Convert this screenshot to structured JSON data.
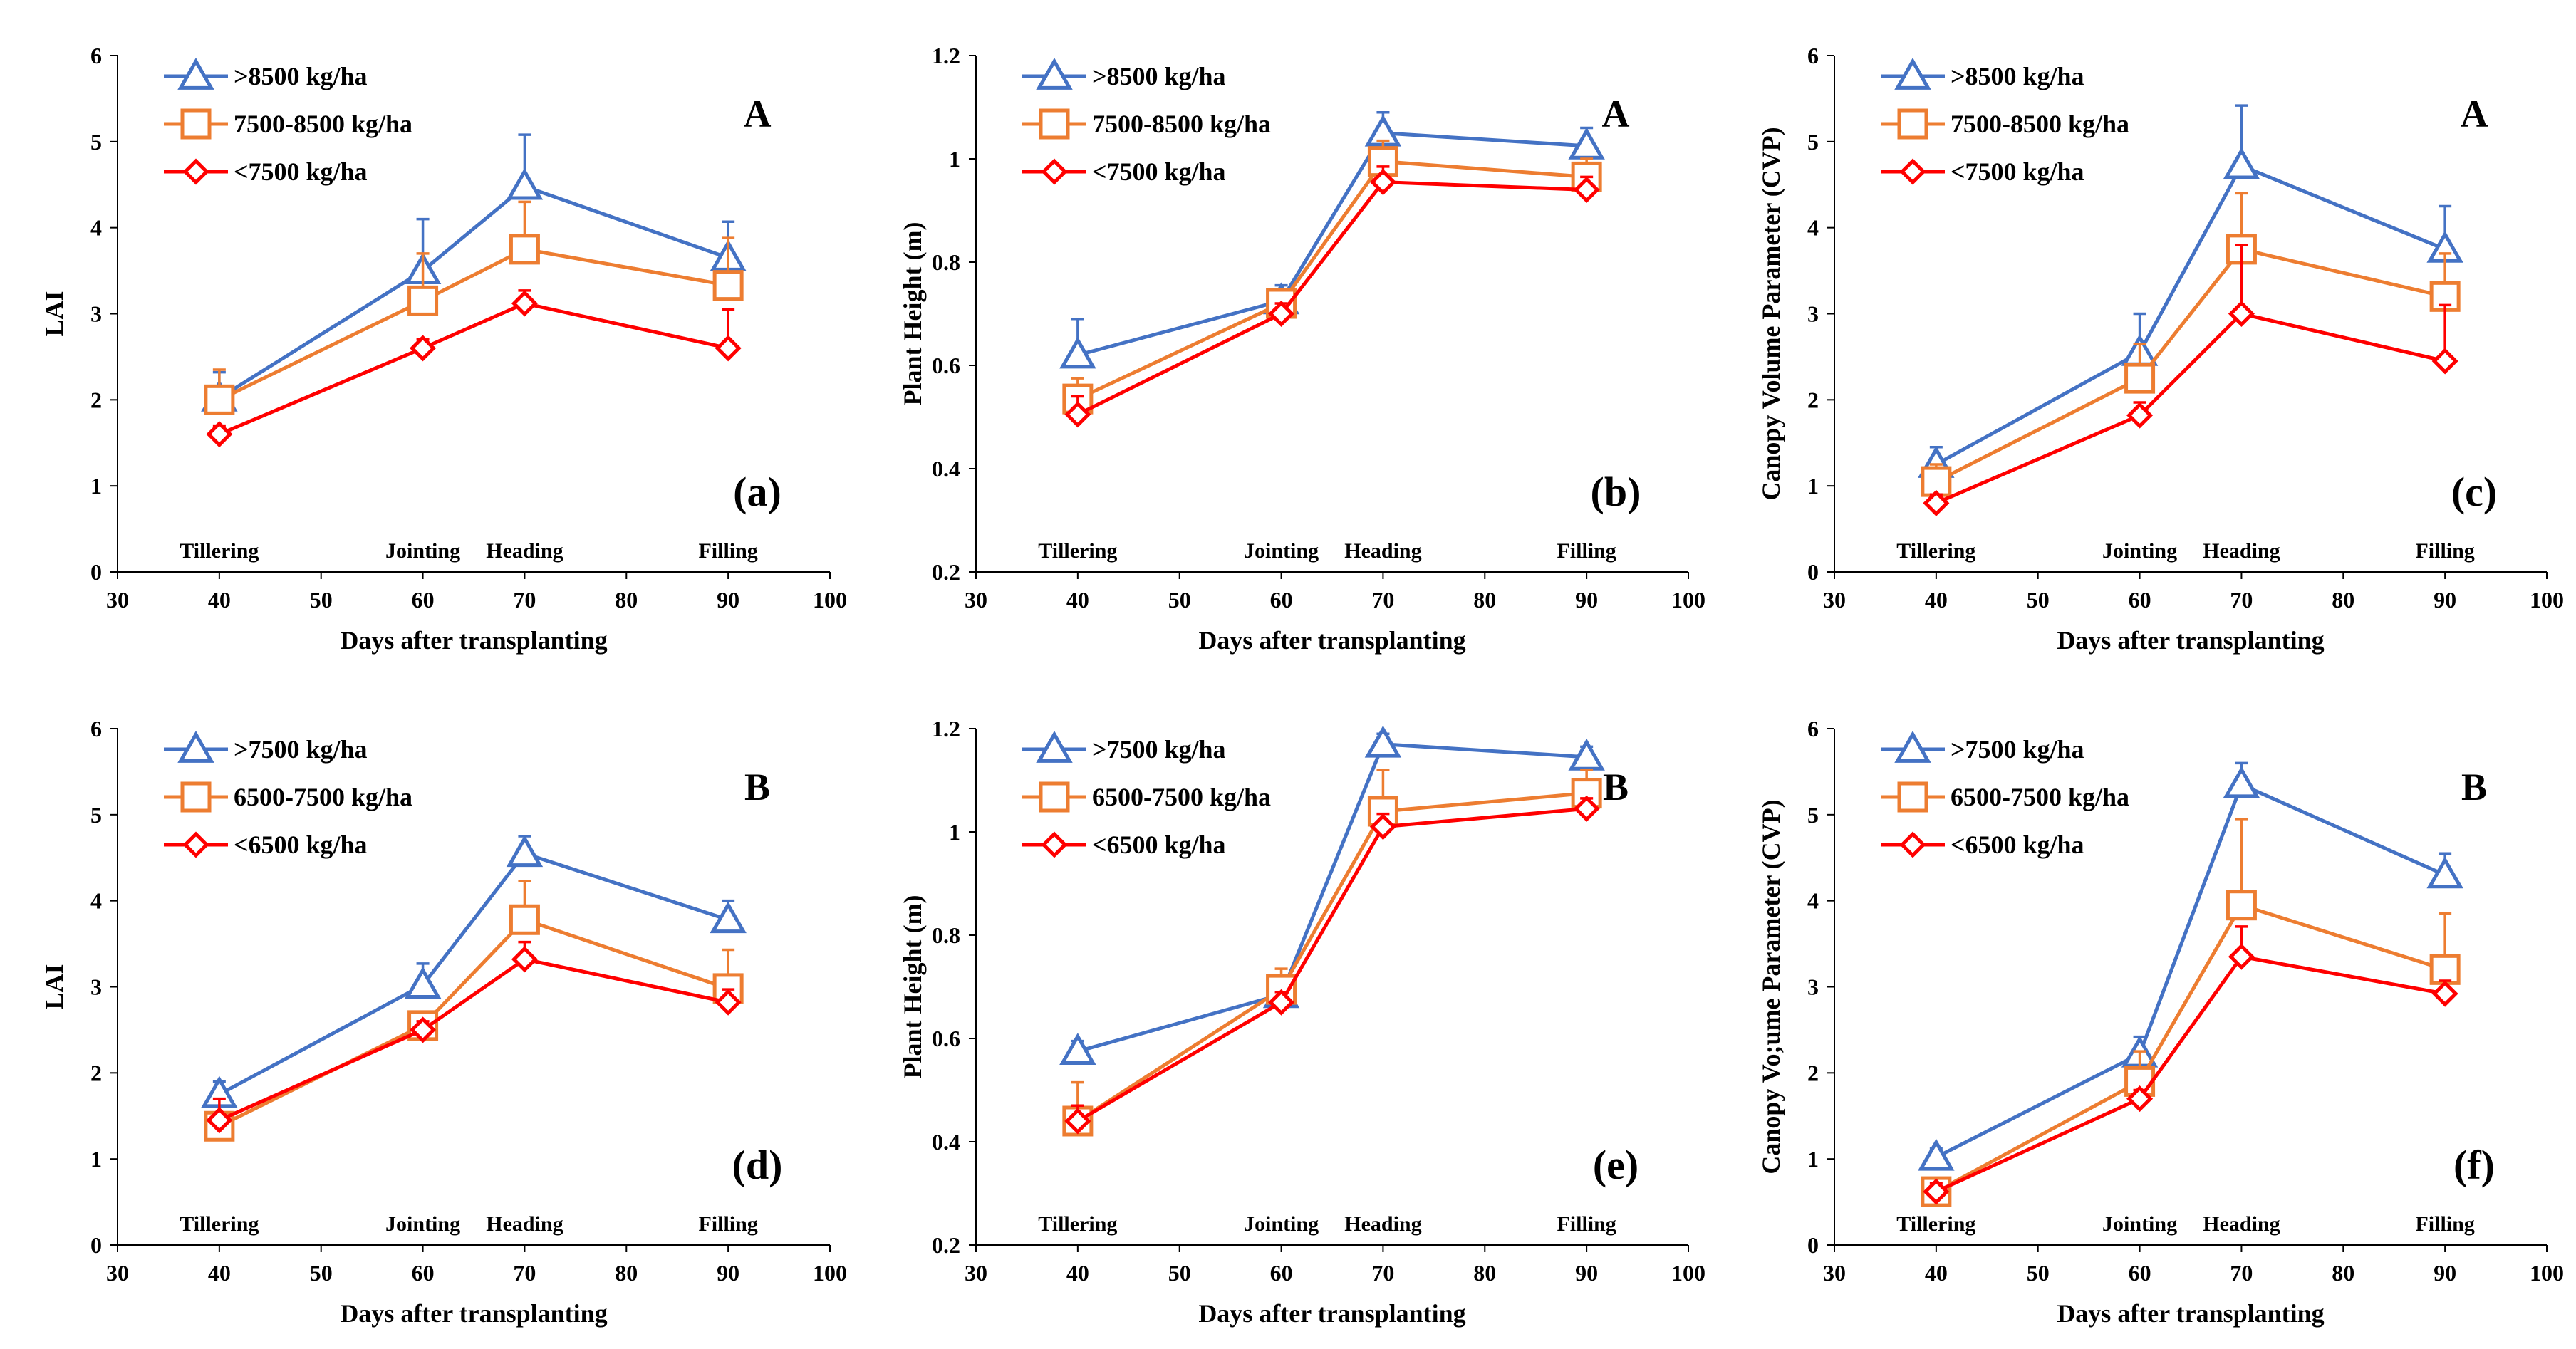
{
  "figure": {
    "x_axis_title": "Days after transplanting",
    "stages": [
      {
        "label": "Tillering",
        "x": 40
      },
      {
        "label": "Jointing",
        "x": 60
      },
      {
        "label": "Heading",
        "x": 70
      },
      {
        "label": "Filling",
        "x": 90
      }
    ]
  },
  "colors": {
    "high": "#4472C4",
    "mid": "#ED7D31",
    "low": "#FF0000"
  },
  "chart_data": [
    {
      "id": "a",
      "type": "line",
      "panel_tag": "(a)",
      "corner_label": "A",
      "ylabel": "LAI",
      "xlabel": "Days after transplanting",
      "xlim": [
        30,
        100
      ],
      "xticks": [
        30,
        40,
        50,
        60,
        70,
        80,
        90,
        100
      ],
      "ylim": [
        0,
        6
      ],
      "yticks": [
        0,
        1,
        2,
        3,
        4,
        5,
        6
      ],
      "ytick_labels": [
        "0",
        "1",
        "2",
        "3",
        "4",
        "5",
        "6"
      ],
      "x": [
        40,
        60,
        70,
        90
      ],
      "series": [
        {
          "name": ">8500 kg/ha",
          "marker": "triangle",
          "color_key": "high",
          "values": [
            2.02,
            3.5,
            4.48,
            3.65
          ],
          "errors": [
            0.3,
            0.6,
            0.6,
            0.42
          ]
        },
        {
          "name": "7500-8500 kg/ha",
          "marker": "square",
          "color_key": "mid",
          "values": [
            2.0,
            3.15,
            3.75,
            3.33
          ],
          "errors": [
            0.35,
            0.55,
            0.55,
            0.55
          ]
        },
        {
          "name": "<7500 kg/ha",
          "marker": "diamond",
          "color_key": "low",
          "values": [
            1.6,
            2.6,
            3.12,
            2.6
          ],
          "errors": [
            0.1,
            0.1,
            0.15,
            0.45
          ]
        }
      ]
    },
    {
      "id": "b",
      "type": "line",
      "panel_tag": "(b)",
      "corner_label": "A",
      "ylabel": "Plant Height (m)",
      "xlabel": "Days after transplanting",
      "xlim": [
        30,
        100
      ],
      "xticks": [
        30,
        40,
        50,
        60,
        70,
        80,
        90,
        100
      ],
      "ylim": [
        0.2,
        1.2
      ],
      "yticks": [
        0.2,
        0.4,
        0.6,
        0.8,
        1.0,
        1.2
      ],
      "ytick_labels": [
        "0.2",
        "0.4",
        "0.6",
        "0.8",
        "1",
        "1.2"
      ],
      "x": [
        40,
        60,
        70,
        90
      ],
      "series": [
        {
          "name": ">8500 kg/ha",
          "marker": "triangle",
          "color_key": "high",
          "values": [
            0.62,
            0.725,
            1.05,
            1.025
          ],
          "errors": [
            0.07,
            0.03,
            0.04,
            0.035
          ]
        },
        {
          "name": "7500-8500 kg/ha",
          "marker": "square",
          "color_key": "mid",
          "values": [
            0.535,
            0.72,
            0.995,
            0.965
          ],
          "errors": [
            0.04,
            0.025,
            0.04,
            0.035
          ]
        },
        {
          "name": "<7500 kg/ha",
          "marker": "diamond",
          "color_key": "low",
          "values": [
            0.505,
            0.7,
            0.955,
            0.94
          ],
          "errors": [
            0.035,
            0.02,
            0.03,
            0.025
          ]
        }
      ]
    },
    {
      "id": "c",
      "type": "line",
      "panel_tag": "(c)",
      "corner_label": "A",
      "ylabel": "Canopy Volume Parameter (CVP)",
      "xlabel": "Days after transplanting",
      "xlim": [
        30,
        100
      ],
      "xticks": [
        30,
        40,
        50,
        60,
        70,
        80,
        90,
        100
      ],
      "ylim": [
        0,
        6
      ],
      "yticks": [
        0,
        1,
        2,
        3,
        4,
        5,
        6
      ],
      "ytick_labels": [
        "0",
        "1",
        "2",
        "3",
        "4",
        "5",
        "6"
      ],
      "x": [
        40,
        60,
        70,
        90
      ],
      "series": [
        {
          "name": ">8500 kg/ha",
          "marker": "triangle",
          "color_key": "high",
          "values": [
            1.25,
            2.55,
            4.72,
            3.75
          ],
          "errors": [
            0.2,
            0.45,
            0.7,
            0.5
          ]
        },
        {
          "name": "7500-8500 kg/ha",
          "marker": "square",
          "color_key": "mid",
          "values": [
            1.05,
            2.25,
            3.75,
            3.2
          ],
          "errors": [
            0.2,
            0.4,
            0.65,
            0.5
          ]
        },
        {
          "name": "<7500 kg/ha",
          "marker": "diamond",
          "color_key": "low",
          "values": [
            0.8,
            1.82,
            3.0,
            2.45
          ],
          "errors": [
            0.1,
            0.15,
            0.8,
            0.65
          ]
        }
      ]
    },
    {
      "id": "d",
      "type": "line",
      "panel_tag": "(d)",
      "corner_label": "B",
      "ylabel": "LAI",
      "xlabel": "Days after transplanting",
      "xlim": [
        30,
        100
      ],
      "xticks": [
        30,
        40,
        50,
        60,
        70,
        80,
        90,
        100
      ],
      "ylim": [
        0,
        6
      ],
      "yticks": [
        0,
        1,
        2,
        3,
        4,
        5,
        6
      ],
      "ytick_labels": [
        "0",
        "1",
        "2",
        "3",
        "4",
        "5",
        "6"
      ],
      "x": [
        40,
        60,
        70,
        90
      ],
      "series": [
        {
          "name": ">7500 kg/ha",
          "marker": "triangle",
          "color_key": "high",
          "values": [
            1.75,
            3.02,
            4.55,
            3.78
          ],
          "errors": [
            0.15,
            0.25,
            0.2,
            0.22
          ]
        },
        {
          "name": "6500-7500 kg/ha",
          "marker": "square",
          "color_key": "mid",
          "values": [
            1.38,
            2.55,
            3.78,
            2.98
          ],
          "errors": [
            0.1,
            0.1,
            0.45,
            0.45
          ]
        },
        {
          "name": "<6500 kg/ha",
          "marker": "diamond",
          "color_key": "low",
          "values": [
            1.45,
            2.5,
            3.32,
            2.82
          ],
          "errors": [
            0.25,
            0.1,
            0.2,
            0.15
          ]
        }
      ]
    },
    {
      "id": "e",
      "type": "line",
      "panel_tag": "(e)",
      "corner_label": "B",
      "ylabel": "Plant Height (m)",
      "xlabel": "Days after transplanting",
      "xlim": [
        30,
        100
      ],
      "xticks": [
        30,
        40,
        50,
        60,
        70,
        80,
        90,
        100
      ],
      "ylim": [
        0.2,
        1.2
      ],
      "yticks": [
        0.2,
        0.4,
        0.6,
        0.8,
        1.0,
        1.2
      ],
      "ytick_labels": [
        "0.2",
        "0.4",
        "0.6",
        "0.8",
        "1",
        "1.2"
      ],
      "x": [
        40,
        60,
        70,
        90
      ],
      "series": [
        {
          "name": ">7500 kg/ha",
          "marker": "triangle",
          "color_key": "high",
          "values": [
            0.575,
            0.685,
            1.17,
            1.145
          ],
          "errors": [
            0.02,
            0.02,
            0.02,
            0.02
          ]
        },
        {
          "name": "6500-7500 kg/ha",
          "marker": "square",
          "color_key": "mid",
          "values": [
            0.44,
            0.695,
            1.04,
            1.075
          ],
          "errors": [
            0.075,
            0.04,
            0.08,
            0.045
          ]
        },
        {
          "name": "<6500 kg/ha",
          "marker": "diamond",
          "color_key": "low",
          "values": [
            0.44,
            0.67,
            1.01,
            1.045
          ],
          "errors": [
            0.03,
            0.02,
            0.025,
            0.02
          ]
        }
      ]
    },
    {
      "id": "f",
      "type": "line",
      "panel_tag": "(f)",
      "corner_label": "B",
      "ylabel": "Canopy Vo;ume Parameter (CVP)",
      "xlabel": "Days after transplanting",
      "xlim": [
        30,
        100
      ],
      "xticks": [
        30,
        40,
        50,
        60,
        70,
        80,
        90,
        100
      ],
      "ylim": [
        0,
        6
      ],
      "yticks": [
        0,
        1,
        2,
        3,
        4,
        5,
        6
      ],
      "ytick_labels": [
        "0",
        "1",
        "2",
        "3",
        "4",
        "5",
        "6"
      ],
      "x": [
        40,
        60,
        70,
        90
      ],
      "series": [
        {
          "name": ">7500 kg/ha",
          "marker": "triangle",
          "color_key": "high",
          "values": [
            1.02,
            2.22,
            5.35,
            4.3
          ],
          "errors": [
            0.1,
            0.2,
            0.25,
            0.25
          ]
        },
        {
          "name": "6500-7500 kg/ha",
          "marker": "square",
          "color_key": "mid",
          "values": [
            0.62,
            1.9,
            3.95,
            3.2
          ],
          "errors": [
            0.15,
            0.35,
            1.0,
            0.65
          ]
        },
        {
          "name": "<6500 kg/ha",
          "marker": "diamond",
          "color_key": "low",
          "values": [
            0.62,
            1.7,
            3.35,
            2.92
          ],
          "errors": [
            0.1,
            0.1,
            0.35,
            0.15
          ]
        }
      ]
    }
  ]
}
